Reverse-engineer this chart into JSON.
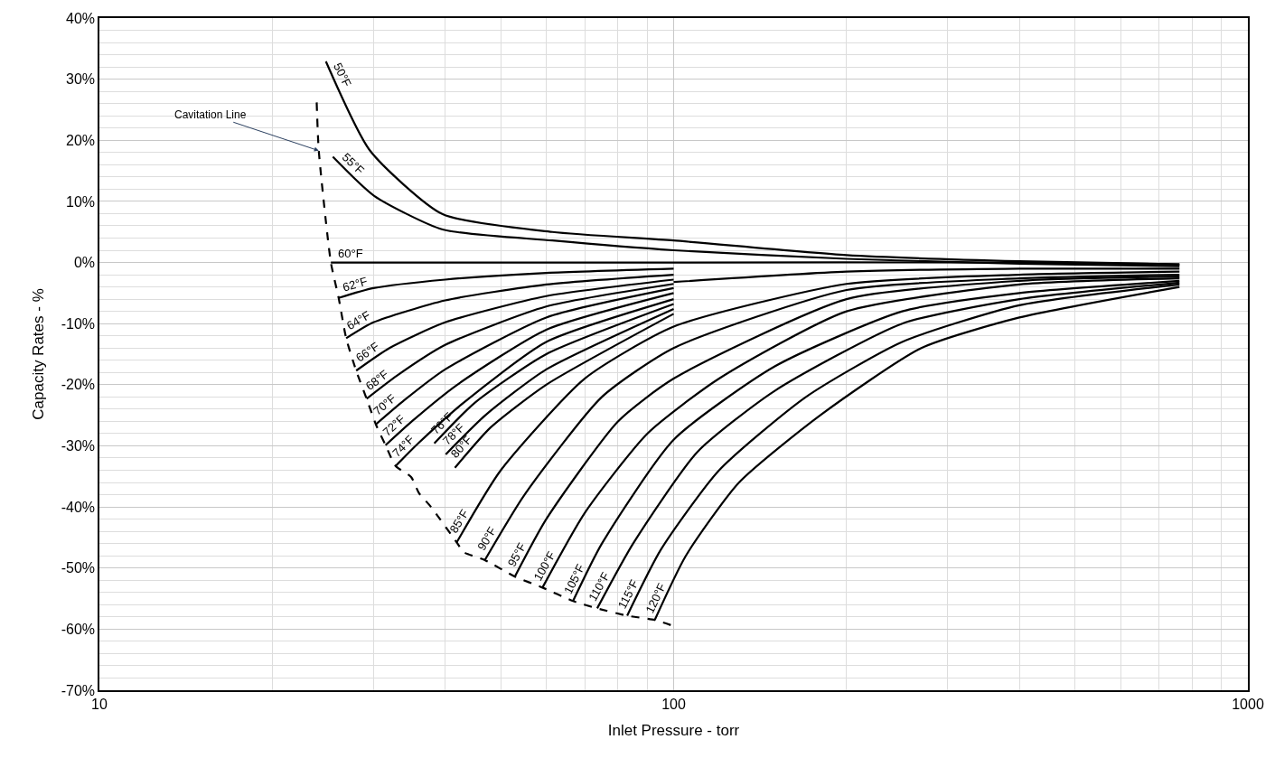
{
  "chart_data": {
    "type": "line",
    "xlabel": "Inlet Pressure - torr",
    "ylabel": "Capacity Rates - %",
    "log": "x",
    "grid": true,
    "legend": false,
    "xlim": [
      10,
      1000
    ],
    "xticks": [
      10,
      100,
      1000
    ],
    "ylim": [
      -70,
      40
    ],
    "yticks": [
      {
        "value": 40,
        "label": "40%"
      },
      {
        "value": 30,
        "label": "30%"
      },
      {
        "value": 20,
        "label": "20%"
      },
      {
        "value": 10,
        "label": "10%"
      },
      {
        "value": 0,
        "label": "0%"
      },
      {
        "value": -10,
        "label": "-10%"
      },
      {
        "value": -20,
        "label": "-20%"
      },
      {
        "value": -30,
        "label": "-30%"
      },
      {
        "value": -40,
        "label": "-40%"
      },
      {
        "value": -50,
        "label": "-50%"
      },
      {
        "value": -60,
        "label": "-60%"
      },
      {
        "value": -70,
        "label": "-70%"
      }
    ],
    "series": [
      {
        "name": "Cavitation Line",
        "color": "#000000",
        "line_style": "dashed",
        "x": [
          23.9,
          24.1,
          25.3,
          26.1,
          26.9,
          28.0,
          29.2,
          30.3,
          31.5,
          32.8,
          34.9,
          36.0,
          37.8,
          41.9,
          43.1,
          46.9,
          52.9,
          59.1,
          66.8,
          73.6,
          83,
          92.7,
          100
        ],
        "values": [
          26.2,
          18.3,
          0,
          -5.8,
          -12.4,
          -17.7,
          -22.3,
          -26.5,
          -29.9,
          -33.3,
          -35.1,
          -37.7,
          -40.0,
          -45.8,
          -47.4,
          -48.7,
          -51.4,
          -53.2,
          -55.4,
          -56.6,
          -57.8,
          -58.5,
          -59.5
        ]
      },
      {
        "name": "50°F",
        "color": "#000000",
        "x": [
          24.8,
          29.6,
          39.6,
          61.5,
          100,
          200,
          400,
          760
        ],
        "values": [
          32.9,
          18.3,
          7.9,
          5.0,
          3.6,
          1.2,
          0.2,
          -0.3
        ]
      },
      {
        "name": "55°F",
        "color": "#000000",
        "x": [
          25.5,
          30.1,
          39.6,
          61.5,
          100,
          200,
          400,
          760
        ],
        "values": [
          17.3,
          10.9,
          5.4,
          3.6,
          2.0,
          0.6,
          -0.2,
          -0.6
        ]
      },
      {
        "name": "60°F",
        "color": "#000000",
        "x": [
          25.3,
          100,
          400,
          760
        ],
        "values": [
          0,
          0,
          0,
          -0.3
        ]
      },
      {
        "name": "62°F",
        "color": "#000000",
        "x": [
          26.1,
          30,
          40,
          60,
          100
        ],
        "values": [
          -5.8,
          -4.2,
          -2.8,
          -1.7,
          -1.0
        ]
      },
      {
        "name": "64°F",
        "color": "#000000",
        "x": [
          26.9,
          30,
          40,
          60,
          100
        ],
        "values": [
          -12.4,
          -9.8,
          -6.2,
          -3.6,
          -2.0
        ]
      },
      {
        "name": "66°F",
        "color": "#000000",
        "x": [
          28.0,
          32,
          40,
          60,
          100
        ],
        "values": [
          -17.7,
          -14,
          -9.8,
          -5.5,
          -2.8
        ]
      },
      {
        "name": "68°F",
        "color": "#000000",
        "x": [
          29.2,
          33,
          40,
          60,
          100
        ],
        "values": [
          -22.3,
          -18.5,
          -13.5,
          -7.2,
          -3.5
        ]
      },
      {
        "name": "70°F",
        "color": "#000000",
        "x": [
          30.3,
          34,
          40,
          60,
          100
        ],
        "values": [
          -26.5,
          -22.5,
          -17.5,
          -9,
          -4.2
        ]
      },
      {
        "name": "72°F",
        "color": "#000000",
        "x": [
          31.5,
          35,
          42,
          60,
          100
        ],
        "values": [
          -29.9,
          -26,
          -20,
          -11,
          -5.0
        ]
      },
      {
        "name": "74°F",
        "color": "#000000",
        "x": [
          32.8,
          36,
          43,
          60,
          100
        ],
        "values": [
          -33.3,
          -29.5,
          -23,
          -13,
          -6.0
        ]
      },
      {
        "name": "76°F",
        "color": "#000000",
        "x": [
          38.3,
          45,
          60,
          100
        ],
        "values": [
          -29.6,
          -23,
          -15,
          -6.8
        ]
      },
      {
        "name": "78°F",
        "color": "#000000",
        "x": [
          40.1,
          47,
          60,
          100
        ],
        "values": [
          -31.4,
          -25,
          -17.5,
          -7.6
        ]
      },
      {
        "name": "80°F",
        "color": "#000000",
        "x": [
          41.6,
          48,
          60,
          100
        ],
        "values": [
          -33.6,
          -27,
          -20,
          -8.4
        ]
      },
      {
        "color": "#000000",
        "x": [
          100,
          200,
          400,
          760
        ],
        "values": [
          -3.2,
          -1.5,
          -1.0,
          -1.0
        ]
      },
      {
        "name": "85°F",
        "color": "#000000",
        "x": [
          41.9,
          50,
          70,
          100,
          200,
          400,
          760
        ],
        "values": [
          -45.8,
          -34,
          -19,
          -10.5,
          -3.5,
          -2,
          -1.5
        ]
      },
      {
        "name": "90°F",
        "color": "#000000",
        "x": [
          46.9,
          55,
          75,
          100,
          200,
          400,
          760
        ],
        "values": [
          -48.7,
          -38,
          -22,
          -14,
          -4.5,
          -2.6,
          -2.0
        ]
      },
      {
        "name": "95°F",
        "color": "#000000",
        "x": [
          52.9,
          60,
          80,
          100,
          200,
          400,
          760
        ],
        "values": [
          -51.4,
          -42,
          -26,
          -19,
          -6,
          -3,
          -2.3
        ]
      },
      {
        "name": "100°F",
        "color": "#000000",
        "x": [
          59.1,
          70,
          90,
          120,
          200,
          400,
          760
        ],
        "values": [
          -53.2,
          -41,
          -28,
          -19,
          -8,
          -3.6,
          -2.6
        ]
      },
      {
        "name": "105°F",
        "color": "#000000",
        "x": [
          66.8,
          75,
          100,
          150,
          250,
          400,
          760
        ],
        "values": [
          -55.4,
          -46,
          -29,
          -17,
          -8,
          -5,
          -3.0
        ]
      },
      {
        "name": "110°F",
        "color": "#000000",
        "x": [
          73.6,
          85,
          110,
          150,
          250,
          400,
          760
        ],
        "values": [
          -56.6,
          -46,
          -31,
          -21,
          -10,
          -6,
          -3.3
        ]
      },
      {
        "name": "115°F",
        "color": "#000000",
        "x": [
          83,
          95,
          120,
          170,
          250,
          400,
          760
        ],
        "values": [
          -57.8,
          -47,
          -34,
          -22,
          -13,
          -7,
          -3.6
        ]
      },
      {
        "name": "120°F",
        "color": "#000000",
        "x": [
          92.7,
          105,
          130,
          180,
          270,
          400,
          760
        ],
        "values": [
          -58.5,
          -48,
          -36,
          -25,
          -14,
          -9,
          -4.0
        ]
      }
    ]
  }
}
